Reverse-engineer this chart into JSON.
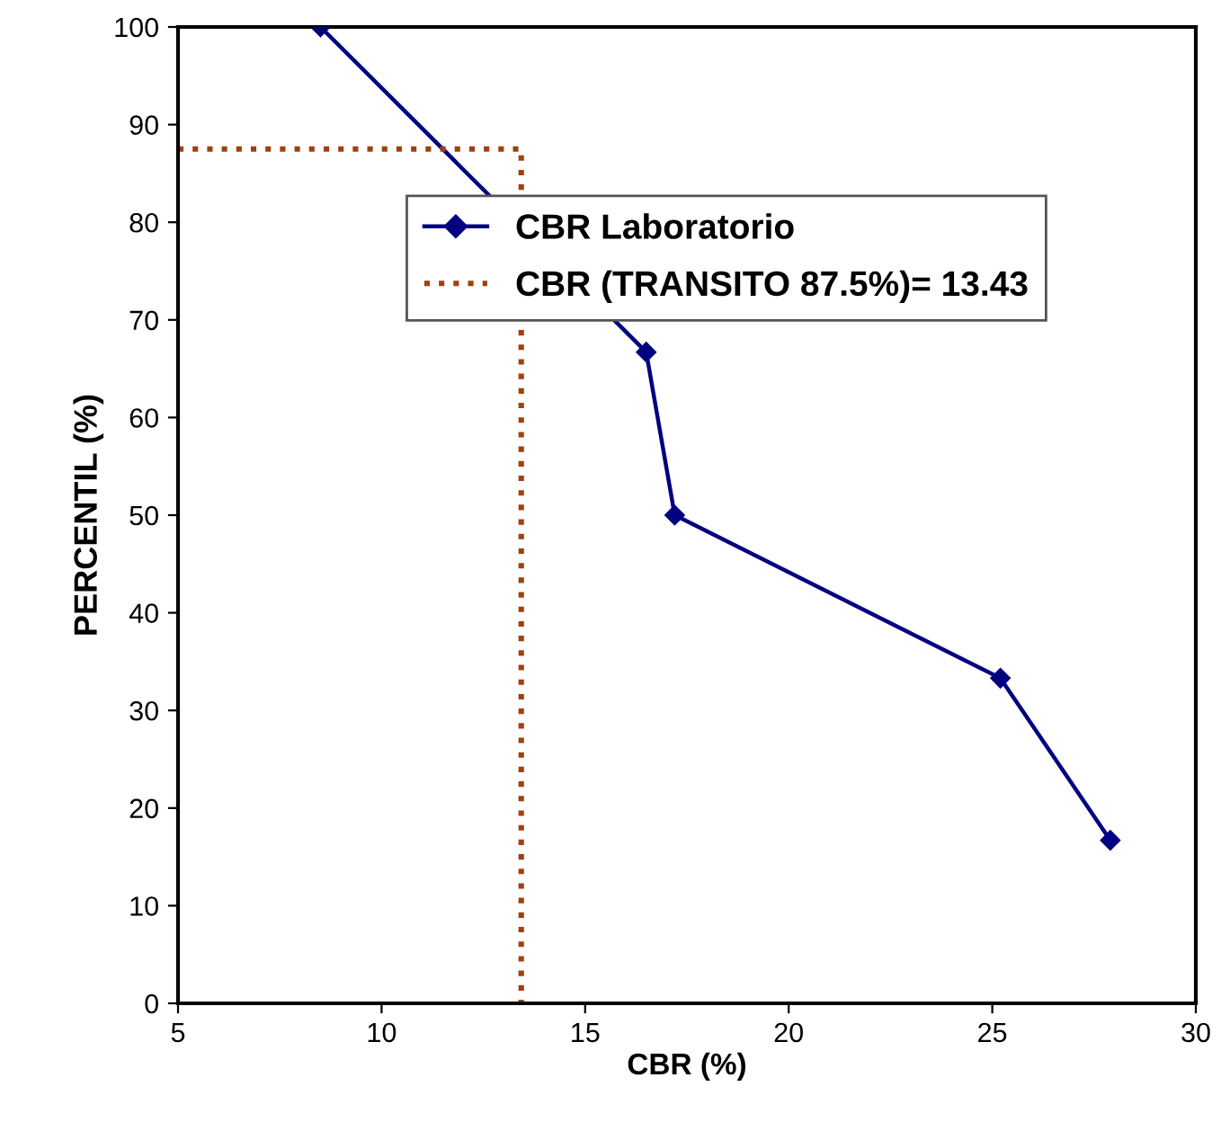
{
  "chart_data": {
    "type": "line",
    "xlabel": "CBR (%)",
    "ylabel": "PERCENTIL (%)",
    "xlim": [
      5,
      30
    ],
    "xticks": [
      5,
      10,
      15,
      20,
      25,
      30
    ],
    "ylim": [
      0,
      100
    ],
    "yticks": [
      0,
      10,
      20,
      30,
      40,
      50,
      60,
      70,
      80,
      90,
      100
    ],
    "grid": false,
    "legend": "top right",
    "series": [
      {
        "name": "CBR Laboratorio",
        "color": "#000080",
        "x": [
          8.5,
          16.5,
          17.2,
          25.2,
          27.9
        ],
        "values": [
          100,
          66.7,
          50,
          33.3,
          16.7
        ],
        "marker": "diamond",
        "line_style": "solid"
      },
      {
        "name": "CBR (TRANSITO 87.5%)= 13.43",
        "color": "#a0410d",
        "x": [
          5,
          13.43,
          13.43
        ],
        "values": [
          87.5,
          87.5,
          0
        ],
        "marker": "none",
        "line_style": "dotted"
      }
    ]
  }
}
